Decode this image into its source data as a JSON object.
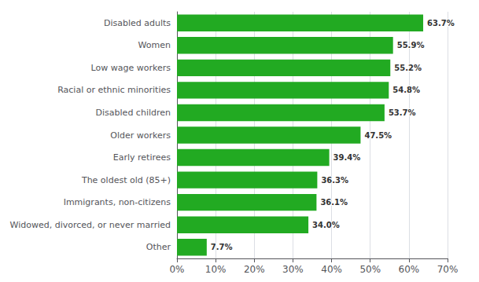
{
  "chart_data": {
    "type": "bar",
    "orientation": "horizontal",
    "categories": [
      "Other",
      "Widowed, divorced, or never married",
      "Immigrants, non-citizens",
      "The oldest old (85+)",
      "Early retirees",
      "Older workers",
      "Disabled children",
      "Racial or ethnic minorities",
      "Low wage workers",
      "Women",
      "Disabled adults"
    ],
    "values": [
      7.7,
      34.0,
      36.1,
      36.3,
      39.4,
      47.5,
      53.7,
      54.8,
      55.2,
      55.9,
      63.7
    ],
    "value_labels": [
      "7.7%",
      "34.0%",
      "36.1%",
      "36.3%",
      "39.4%",
      "47.5%",
      "53.7%",
      "54.8%",
      "55.2%",
      "55.9%",
      "63.7%"
    ],
    "data_labels": true,
    "color": "#22aa22",
    "xlim": [
      0,
      70
    ],
    "xticks": [
      {
        "value": 0,
        "label": "0%"
      },
      {
        "value": 10,
        "label": "10%"
      },
      {
        "value": 20,
        "label": "20%"
      },
      {
        "value": 30,
        "label": "30%"
      },
      {
        "value": 40,
        "label": "40%"
      },
      {
        "value": 50,
        "label": "50%"
      },
      {
        "value": 60,
        "label": "60%"
      },
      {
        "value": 70,
        "label": "70%"
      }
    ],
    "grid": true
  }
}
